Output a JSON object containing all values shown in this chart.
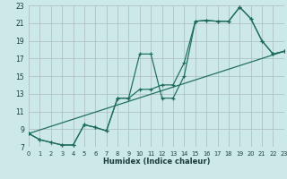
{
  "xlabel": "Humidex (Indice chaleur)",
  "bg_color": "#cce8e8",
  "grid_color": "#aabbbb",
  "line_color": "#1a6b5a",
  "xlim": [
    0,
    23
  ],
  "ylim": [
    7,
    23
  ],
  "xtick_vals": [
    0,
    1,
    2,
    3,
    4,
    5,
    6,
    7,
    8,
    9,
    10,
    11,
    12,
    13,
    14,
    15,
    16,
    17,
    18,
    19,
    20,
    21,
    22,
    23
  ],
  "ytick_vals": [
    7,
    9,
    11,
    13,
    15,
    17,
    19,
    21,
    23
  ],
  "line1_x": [
    0,
    1,
    2,
    3,
    4,
    5,
    6,
    7,
    8,
    9,
    10,
    11,
    12,
    13,
    14,
    15,
    16,
    17,
    18,
    19,
    20,
    21,
    22,
    23
  ],
  "line1_y": [
    8.5,
    7.8,
    7.5,
    7.2,
    7.2,
    9.5,
    9.2,
    8.8,
    12.5,
    12.5,
    13.5,
    13.5,
    14.0,
    14.0,
    16.5,
    21.2,
    21.3,
    21.2,
    21.2,
    22.8,
    21.5,
    19.0,
    17.5,
    17.8
  ],
  "line2_x": [
    0,
    1,
    2,
    3,
    4,
    5,
    6,
    7,
    8,
    9,
    10,
    11,
    12,
    13,
    14,
    15,
    16,
    17,
    18,
    19,
    20,
    21,
    22,
    23
  ],
  "line2_y": [
    8.5,
    7.8,
    7.5,
    7.2,
    7.2,
    9.5,
    9.2,
    8.8,
    12.5,
    12.5,
    17.5,
    17.5,
    12.5,
    12.5,
    15.0,
    21.2,
    21.3,
    21.2,
    21.2,
    22.8,
    21.5,
    19.0,
    17.5,
    17.8
  ],
  "line3_x": [
    0,
    23
  ],
  "line3_y": [
    8.5,
    17.8
  ]
}
